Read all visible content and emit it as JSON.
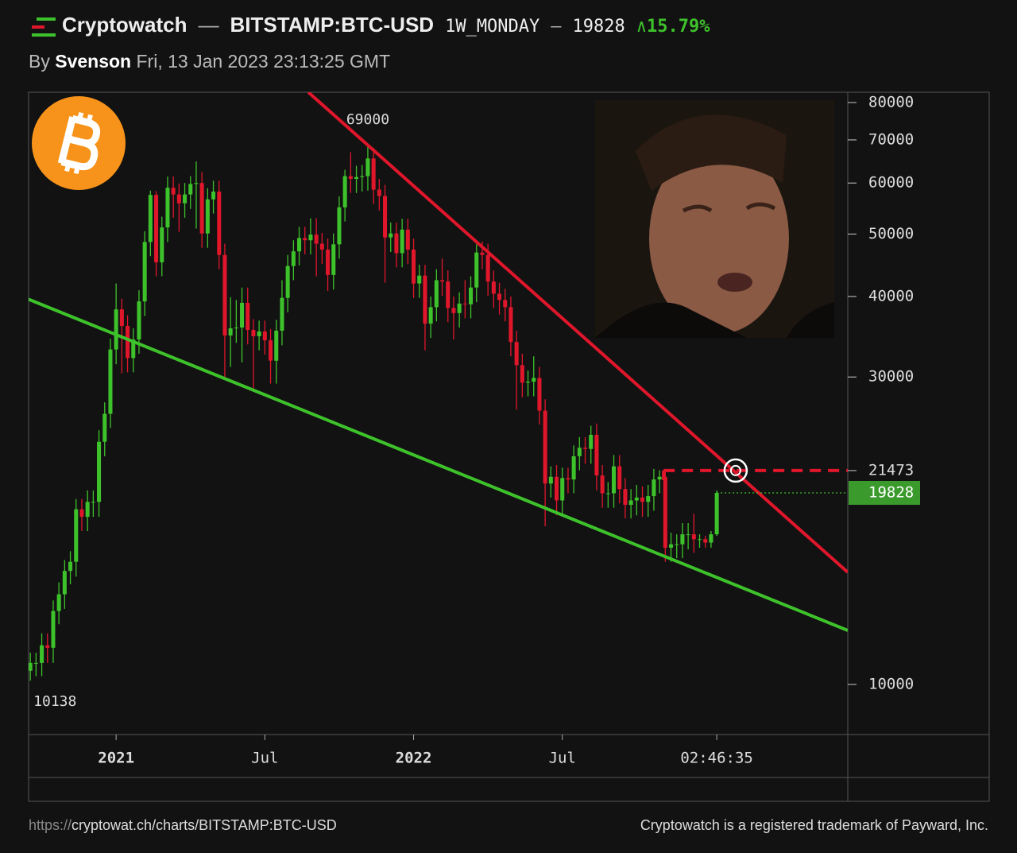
{
  "header": {
    "brand": "Cryptowatch",
    "separator": "—",
    "pair": "BITSTAMP:BTC-USD",
    "interval": "1W_MONDAY",
    "price": "19828",
    "change": "15.79%",
    "by": "By",
    "author": "Svenson",
    "timestamp": "Fri, 13 Jan 2023 23:13:25 GMT"
  },
  "footer": {
    "url_scheme": "https://",
    "url": "cryptowat.ch/charts/BITSTAMP:BTC-USD",
    "trademark": "Cryptowatch is a registered trademark of Payward, Inc."
  },
  "chart_data": {
    "type": "candlestick",
    "log_scale": true,
    "up_color": "#3ec22b",
    "down_color": "#e0162b",
    "xlim": [
      -0.3,
      142.9
    ],
    "xticks": [
      {
        "value": 15,
        "label": "2021"
      },
      {
        "value": 41,
        "label": "Jul"
      },
      {
        "value": 67,
        "label": "2022"
      },
      {
        "value": 93,
        "label": "Jul"
      },
      {
        "value": 120,
        "label": "02:46:35"
      }
    ],
    "ylim": [
      8360,
      83000
    ],
    "yticks": [
      10000,
      30000,
      40000,
      50000,
      60000,
      70000,
      80000
    ],
    "open": [
      10500,
      10800,
      10800,
      11500,
      11400,
      13000,
      13800,
      15000,
      15500,
      18700,
      18200,
      19200,
      19200,
      23800,
      26300,
      33100,
      38200,
      36000,
      32100,
      34300,
      39300,
      48600,
      57500,
      45200,
      51200,
      59000,
      57600,
      55800,
      57600,
      59800,
      60000,
      50100,
      56600,
      58200,
      46400,
      34800,
      35700,
      35800,
      39100,
      35500,
      34700,
      35300,
      34200,
      31800,
      35400,
      39800,
      44600,
      47000,
      49300,
      48900,
      49900,
      48300,
      47300,
      43200,
      48200,
      55000,
      61500,
      60900,
      61300,
      61500,
      65500,
      58600,
      57300,
      49400,
      50100,
      46700,
      50800,
      47300,
      41900,
      43100,
      36300,
      38500,
      42400,
      42200,
      38400,
      37700,
      39000,
      38900,
      41300,
      46800,
      46400,
      42200,
      40400,
      39500,
      38500,
      34000,
      31300,
      29400,
      29500,
      29900,
      26600,
      20500,
      21000,
      19300,
      20900,
      20800,
      22600,
      23300,
      23200,
      24400,
      21100,
      19800,
      19800,
      21800,
      20100,
      19000,
      19300,
      19500,
      19200,
      19600,
      20800,
      21000,
      16300,
      16500,
      16500,
      17100,
      17100,
      16800,
      16800,
      16600,
      17100
    ],
    "high": [
      11200,
      11200,
      12000,
      12000,
      13500,
      14400,
      15600,
      16100,
      19400,
      19400,
      20000,
      20000,
      24800,
      27400,
      34400,
      41900,
      39700,
      37400,
      35700,
      40900,
      50500,
      58400,
      58300,
      53200,
      61400,
      61400,
      59900,
      60000,
      61500,
      64800,
      62400,
      58900,
      60500,
      60500,
      48300,
      39900,
      39500,
      41300,
      41300,
      36900,
      36700,
      36700,
      35600,
      36800,
      42400,
      46400,
      48900,
      51300,
      51300,
      52900,
      52900,
      50200,
      49200,
      50100,
      57200,
      62900,
      67000,
      63800,
      64000,
      69000,
      68100,
      60900,
      59600,
      52100,
      52100,
      52800,
      52800,
      49200,
      44800,
      44800,
      40000,
      44100,
      45800,
      43900,
      40000,
      40600,
      42400,
      43000,
      48200,
      48700,
      48300,
      43900,
      42000,
      41100,
      40000,
      35400,
      32600,
      30700,
      32300,
      31100,
      27700,
      21800,
      21900,
      21700,
      21700,
      23500,
      24200,
      24200,
      25200,
      25400,
      21900,
      20600,
      22700,
      22700,
      20900,
      20100,
      20400,
      20300,
      20400,
      21600,
      21500,
      21500,
      17200,
      17100,
      17800,
      17800,
      18400,
      17100,
      17000,
      17300,
      20000
    ],
    "low": [
      10138,
      10300,
      10300,
      10800,
      10800,
      12400,
      13100,
      14300,
      14700,
      17300,
      17300,
      18200,
      18200,
      22600,
      25000,
      31400,
      30400,
      30500,
      30500,
      32600,
      37300,
      46200,
      43000,
      43000,
      48600,
      53000,
      50400,
      53000,
      54700,
      51000,
      47600,
      47600,
      53800,
      44100,
      30000,
      31100,
      33900,
      31600,
      33700,
      28800,
      33000,
      32500,
      29300,
      29300,
      33600,
      37800,
      42400,
      44700,
      46500,
      46500,
      43000,
      44900,
      40800,
      41000,
      45800,
      52300,
      57900,
      57900,
      58200,
      58400,
      55700,
      54400,
      42000,
      46900,
      44400,
      44400,
      44900,
      39800,
      39800,
      33000,
      34500,
      36600,
      40100,
      36500,
      34300,
      35800,
      37000,
      37000,
      39200,
      44100,
      40100,
      38400,
      37500,
      36600,
      32300,
      26700,
      27900,
      28000,
      28000,
      25300,
      17600,
      19500,
      18300,
      18300,
      19800,
      19800,
      21500,
      22000,
      22000,
      20000,
      18800,
      18800,
      18800,
      19100,
      18100,
      18100,
      18300,
      18200,
      18200,
      18600,
      19800,
      15500,
      15500,
      15700,
      15700,
      16200,
      16000,
      16300,
      16300,
      16300,
      17000
    ],
    "close": [
      10800,
      10800,
      11500,
      11400,
      13000,
      13800,
      15000,
      15500,
      18700,
      18200,
      19200,
      19200,
      23800,
      26300,
      33100,
      38200,
      36000,
      32100,
      34300,
      39300,
      48600,
      57500,
      45200,
      51200,
      59000,
      57600,
      55800,
      57600,
      59800,
      60000,
      50100,
      56600,
      58200,
      46400,
      34800,
      35700,
      35800,
      39100,
      35500,
      34700,
      35300,
      34200,
      31800,
      35400,
      39800,
      44600,
      47000,
      49300,
      48900,
      49900,
      48300,
      47300,
      43200,
      48200,
      55000,
      61500,
      60900,
      61300,
      61500,
      65500,
      58600,
      57300,
      49400,
      50100,
      46700,
      50800,
      47300,
      41900,
      43100,
      36300,
      38500,
      42400,
      42200,
      38400,
      37700,
      39000,
      38900,
      41300,
      46800,
      46400,
      42200,
      40400,
      39500,
      38500,
      34000,
      31300,
      29400,
      29500,
      29900,
      26600,
      20500,
      21000,
      19300,
      20900,
      20800,
      22600,
      23300,
      23200,
      24400,
      21100,
      19800,
      19800,
      21800,
      20100,
      19000,
      19300,
      19500,
      19200,
      19600,
      20800,
      21000,
      16300,
      16500,
      16500,
      17100,
      17100,
      16800,
      16800,
      16600,
      17100,
      19828
    ],
    "trendlines": [
      {
        "color": "#e0162b",
        "points": [
          [
            48.6,
            83000
          ],
          [
            142.9,
            14930
          ]
        ]
      },
      {
        "color": "#3ec22b",
        "points": [
          [
            -0.3,
            39600
          ],
          [
            142.9,
            12130
          ]
        ]
      }
    ],
    "level": {
      "value": 21473,
      "start": 110.7,
      "marker": 123.3,
      "color": "#e0162b"
    },
    "last": {
      "value": 19828,
      "start": 120,
      "color": "#3a9a2c"
    }
  }
}
